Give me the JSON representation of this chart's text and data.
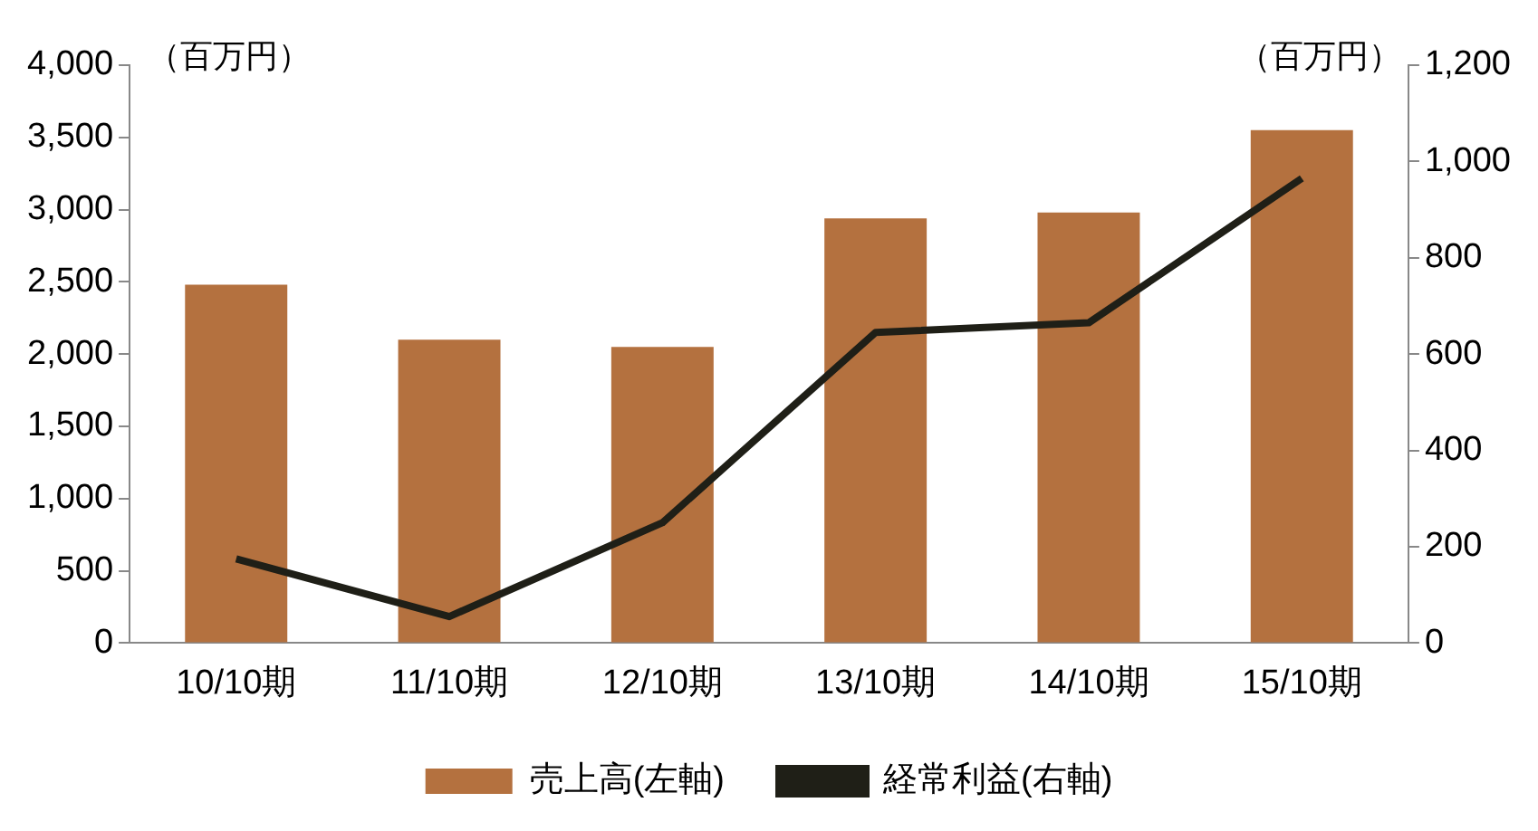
{
  "chart_data": {
    "type": "bar",
    "categories": [
      "10/10期",
      "11/10期",
      "12/10期",
      "13/10期",
      "14/10期",
      "15/10期"
    ],
    "series": [
      {
        "name": "売上高(左軸)",
        "color": "#b4713f",
        "values": [
          2480,
          2100,
          2050,
          2940,
          2980,
          3550
        ]
      },
      {
        "name": "経常利益(右軸)",
        "type": "line",
        "axis": "y2",
        "color": "#1f1f17",
        "values": [
          175,
          55,
          250,
          645,
          665,
          965
        ]
      }
    ],
    "ylabel": "（百万円）",
    "y2label": "（百万円）",
    "ylim": [
      0,
      4000
    ],
    "yticks": [
      0,
      500,
      {
        "value": 1000,
        "label": "1,000"
      },
      {
        "value": 1500,
        "label": "1,500"
      },
      {
        "value": 2000,
        "label": "2,000"
      },
      {
        "value": 2500,
        "label": "2,500"
      },
      {
        "value": 3000,
        "label": "3,000"
      },
      {
        "value": 3500,
        "label": "3,500"
      },
      {
        "value": 4000,
        "label": "4,000"
      }
    ],
    "y2lim": [
      0,
      1200
    ],
    "y2ticks": [
      0,
      200,
      400,
      600,
      800,
      {
        "value": 1000,
        "label": "1,000"
      },
      {
        "value": 1200,
        "label": "1,200"
      }
    ],
    "grid": false,
    "legend": "bottom",
    "marker": "none",
    "line_style": "solid"
  }
}
